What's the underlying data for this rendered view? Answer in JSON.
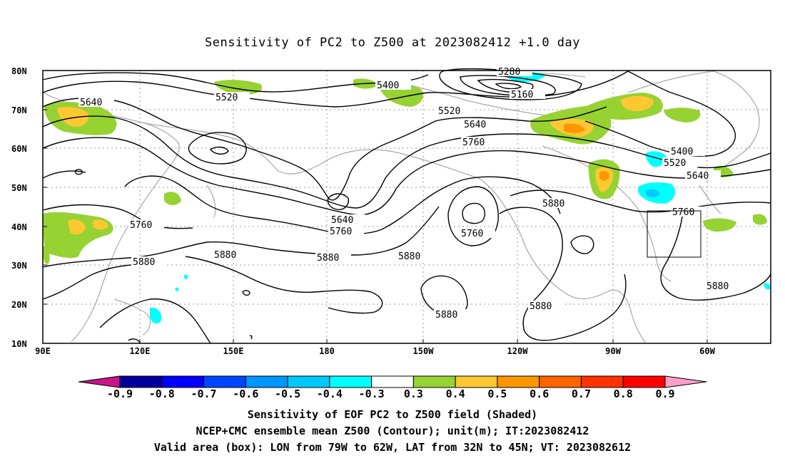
{
  "title": "Sensitivity of PC2 to Z500 at 2023082412 +1.0 day",
  "lat_ticks": [
    "80N",
    "70N",
    "60N",
    "50N",
    "40N",
    "30N",
    "20N",
    "10N"
  ],
  "lon_ticks": [
    "90E",
    "120E",
    "150E",
    "180",
    "150W",
    "120W",
    "90W",
    "60W"
  ],
  "contour_labels": [
    "5280",
    "5160",
    "5400",
    "5520",
    "5640",
    "5520",
    "5640",
    "5760",
    "5400",
    "5520",
    "5640",
    "5760",
    "5640",
    "5760",
    "5760",
    "5880",
    "5880",
    "5760",
    "5880",
    "5880",
    "5880",
    "5880",
    "5880",
    "5880"
  ],
  "colorbar": {
    "labels": [
      "-0.9",
      "-0.8",
      "-0.7",
      "-0.6",
      "-0.5",
      "-0.4",
      "-0.3",
      "0.3",
      "0.4",
      "0.5",
      "0.6",
      "0.7",
      "0.8",
      "0.9"
    ],
    "colors": [
      "#00009c",
      "#0000ff",
      "#0046ff",
      "#0096ff",
      "#00c8ff",
      "#00ffff",
      "#ffffff",
      "#96d232",
      "#ffc832",
      "#ff9600",
      "#ff6400",
      "#ff3200",
      "#ff0000"
    ],
    "low_end_color": "#c8148c",
    "high_end_color": "#ffa0c8"
  },
  "footnotes": {
    "line1": "Sensitivity of EOF PC2 to Z500 field (Shaded)",
    "line2": "NCEP+CMC ensemble mean Z500 (Contour); unit(m); IT:2023082412",
    "line3": "Valid area (box): LON from 79W to 62W, LAT from 32N to 45N; VT: 2023082612"
  },
  "valid_box": {
    "lon_from": "79W",
    "lon_to": "62W",
    "lat_from": "32N",
    "lat_to": "45N"
  }
}
